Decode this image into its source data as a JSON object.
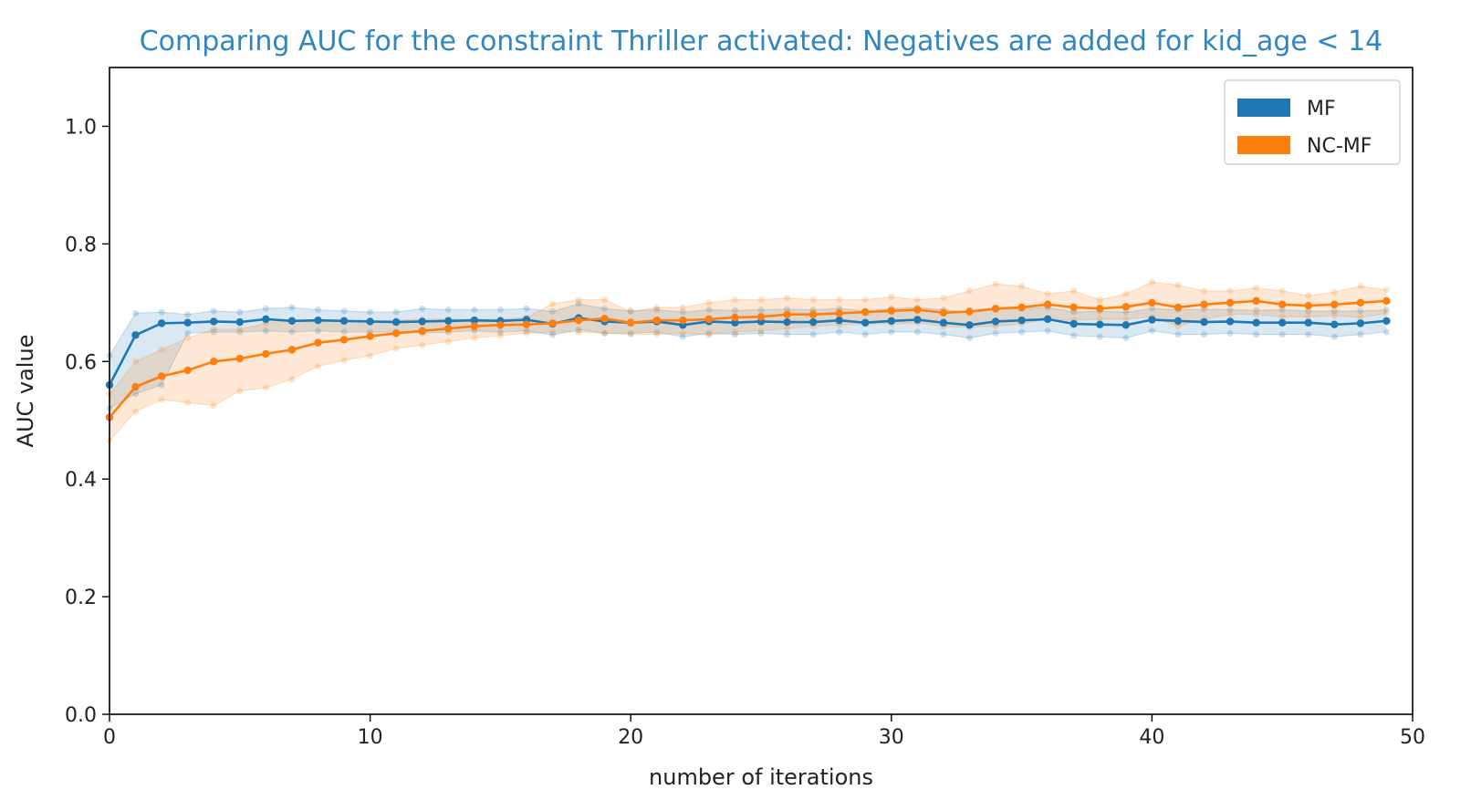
{
  "chart_data": {
    "type": "line",
    "title": "Comparing AUC for the constraint Thriller activated: Negatives are added for kid_age < 14",
    "xlabel": "number of iterations",
    "ylabel": "AUC value",
    "xlim": [
      0,
      50
    ],
    "ylim": [
      0,
      1.1
    ],
    "x_ticks": [
      "0",
      "10",
      "20",
      "30",
      "40",
      "50"
    ],
    "y_ticks": [
      "0.0",
      "0.2",
      "0.4",
      "0.6",
      "0.8",
      "1.0"
    ],
    "grid": false,
    "legend_position": "top-right",
    "x": [
      0,
      1,
      2,
      3,
      4,
      5,
      6,
      7,
      8,
      9,
      10,
      11,
      12,
      13,
      14,
      15,
      16,
      17,
      18,
      19,
      20,
      21,
      22,
      23,
      24,
      25,
      26,
      27,
      28,
      29,
      30,
      31,
      32,
      33,
      34,
      35,
      36,
      37,
      38,
      39,
      40,
      41,
      42,
      43,
      44,
      45,
      46,
      47,
      48,
      49
    ],
    "series": [
      {
        "name": "MF",
        "color": "#1f77b4",
        "values": [
          0.56,
          0.645,
          0.665,
          0.666,
          0.668,
          0.667,
          0.672,
          0.669,
          0.67,
          0.669,
          0.668,
          0.667,
          0.668,
          0.669,
          0.67,
          0.669,
          0.671,
          0.664,
          0.674,
          0.668,
          0.666,
          0.668,
          0.662,
          0.668,
          0.666,
          0.668,
          0.667,
          0.667,
          0.67,
          0.666,
          0.669,
          0.671,
          0.666,
          0.662,
          0.668,
          0.67,
          0.672,
          0.664,
          0.663,
          0.662,
          0.671,
          0.669,
          0.667,
          0.668,
          0.666,
          0.666,
          0.666,
          0.663,
          0.665,
          0.669
        ],
        "upper": [
          0.61,
          0.682,
          0.684,
          0.68,
          0.686,
          0.684,
          0.69,
          0.692,
          0.688,
          0.686,
          0.684,
          0.684,
          0.69,
          0.688,
          0.688,
          0.688,
          0.69,
          0.685,
          0.698,
          0.69,
          0.686,
          0.688,
          0.684,
          0.688,
          0.687,
          0.688,
          0.689,
          0.688,
          0.69,
          0.686,
          0.69,
          0.692,
          0.688,
          0.683,
          0.688,
          0.69,
          0.692,
          0.684,
          0.686,
          0.684,
          0.69,
          0.688,
          0.689,
          0.688,
          0.687,
          0.688,
          0.686,
          0.686,
          0.686,
          0.688
        ],
        "lower": [
          0.52,
          0.545,
          0.56,
          0.648,
          0.65,
          0.65,
          0.652,
          0.65,
          0.652,
          0.65,
          0.65,
          0.65,
          0.648,
          0.65,
          0.652,
          0.65,
          0.652,
          0.645,
          0.654,
          0.648,
          0.648,
          0.65,
          0.642,
          0.648,
          0.646,
          0.648,
          0.646,
          0.646,
          0.65,
          0.646,
          0.65,
          0.65,
          0.646,
          0.64,
          0.648,
          0.65,
          0.652,
          0.644,
          0.642,
          0.64,
          0.652,
          0.646,
          0.646,
          0.648,
          0.646,
          0.646,
          0.646,
          0.642,
          0.646,
          0.65
        ]
      },
      {
        "name": "NC-MF",
        "color": "#ff7f0e",
        "values": [
          0.505,
          0.557,
          0.575,
          0.585,
          0.6,
          0.605,
          0.613,
          0.62,
          0.632,
          0.637,
          0.643,
          0.648,
          0.652,
          0.656,
          0.66,
          0.662,
          0.663,
          0.665,
          0.67,
          0.673,
          0.666,
          0.67,
          0.67,
          0.672,
          0.675,
          0.676,
          0.68,
          0.68,
          0.682,
          0.684,
          0.686,
          0.688,
          0.683,
          0.685,
          0.69,
          0.692,
          0.697,
          0.692,
          0.69,
          0.693,
          0.7,
          0.692,
          0.697,
          0.7,
          0.703,
          0.697,
          0.695,
          0.697,
          0.7,
          0.703
        ],
        "upper": [
          0.545,
          0.6,
          0.62,
          0.64,
          0.655,
          0.655,
          0.665,
          0.67,
          0.67,
          0.67,
          0.668,
          0.67,
          0.672,
          0.672,
          0.672,
          0.672,
          0.675,
          0.698,
          0.705,
          0.705,
          0.685,
          0.692,
          0.692,
          0.7,
          0.705,
          0.705,
          0.708,
          0.705,
          0.705,
          0.705,
          0.71,
          0.705,
          0.708,
          0.72,
          0.732,
          0.728,
          0.715,
          0.72,
          0.705,
          0.715,
          0.735,
          0.73,
          0.72,
          0.72,
          0.725,
          0.72,
          0.712,
          0.718,
          0.728,
          0.722
        ],
        "lower": [
          0.465,
          0.515,
          0.535,
          0.53,
          0.525,
          0.55,
          0.555,
          0.57,
          0.592,
          0.602,
          0.61,
          0.622,
          0.628,
          0.634,
          0.64,
          0.644,
          0.648,
          0.65,
          0.65,
          0.648,
          0.646,
          0.646,
          0.648,
          0.645,
          0.65,
          0.652,
          0.656,
          0.66,
          0.662,
          0.664,
          0.664,
          0.666,
          0.66,
          0.658,
          0.66,
          0.664,
          0.672,
          0.67,
          0.672,
          0.672,
          0.676,
          0.66,
          0.672,
          0.68,
          0.68,
          0.676,
          0.676,
          0.678,
          0.675,
          0.682
        ]
      }
    ]
  }
}
